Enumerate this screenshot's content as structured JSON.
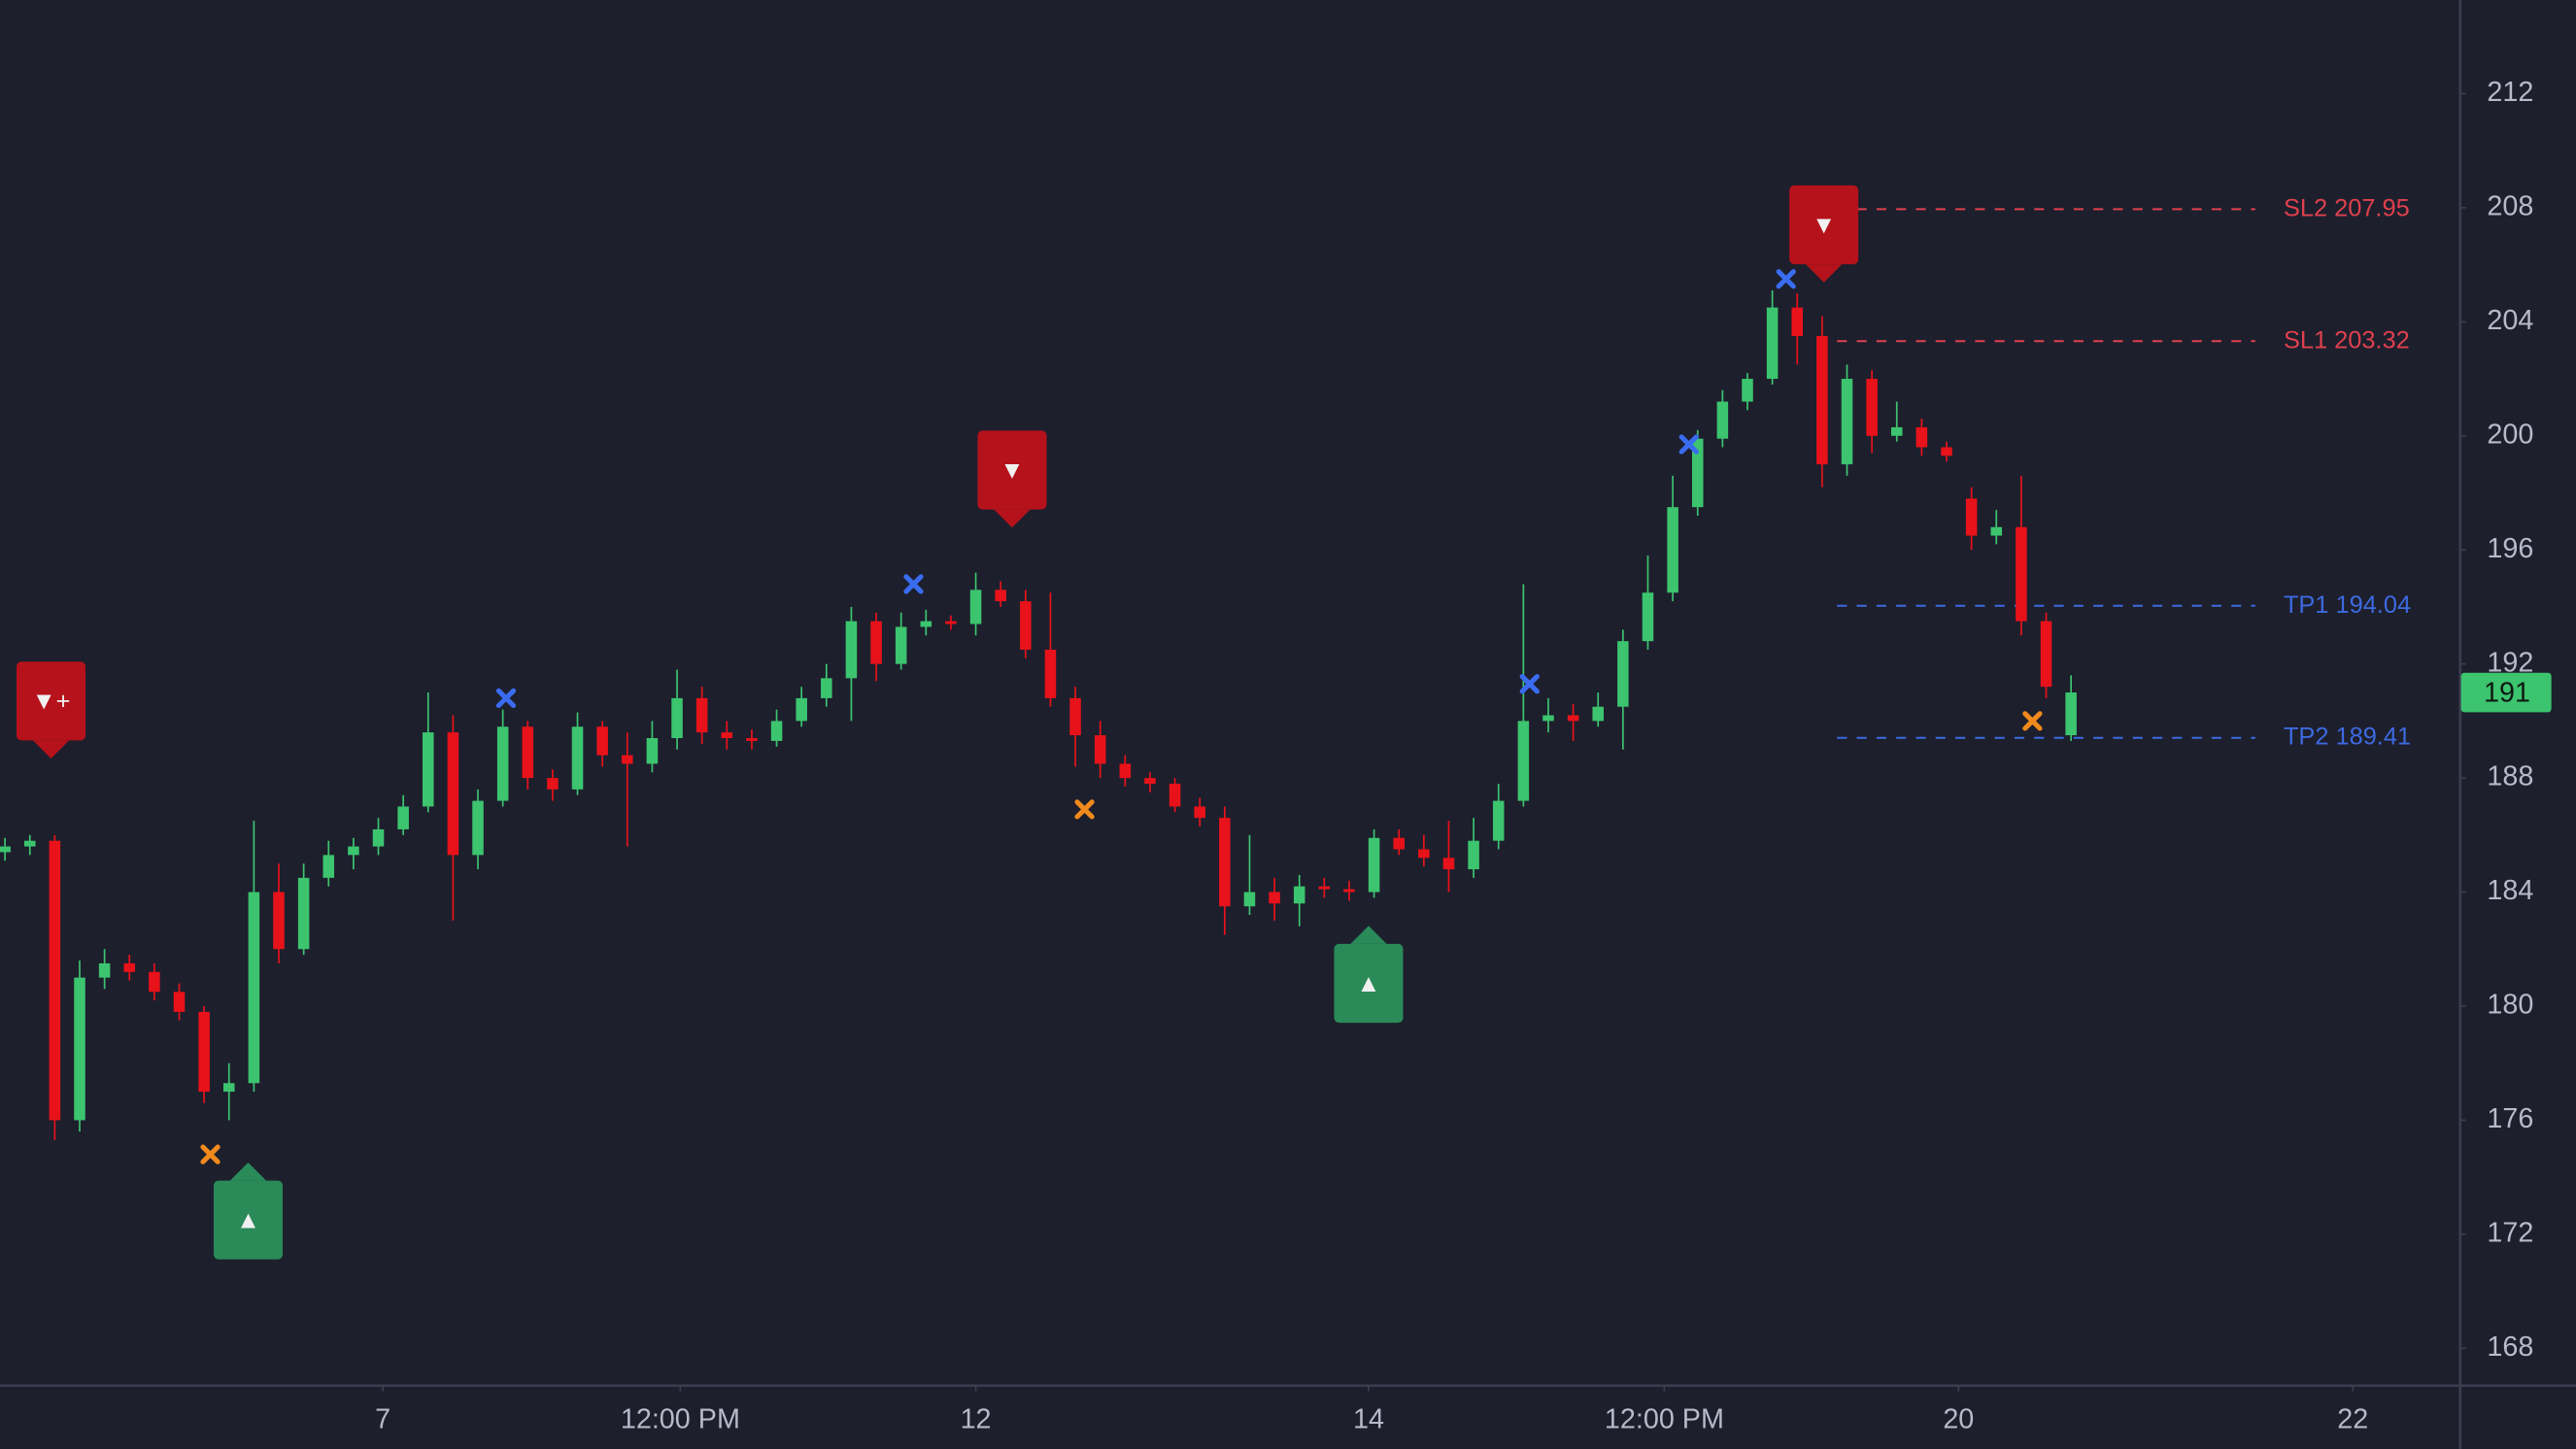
{
  "chart_data": {
    "type": "candlestick",
    "up_color": "#3cc46f",
    "down_color": "#e8121a",
    "xlim": [
      -0.2,
      98.6
    ],
    "ylim": [
      166.72,
      215.28
    ],
    "yticks": [
      168,
      172,
      176,
      180,
      184,
      188,
      192,
      196,
      200,
      204,
      208,
      212
    ],
    "xticks": [
      {
        "value": 15.18,
        "label": "7"
      },
      {
        "value": 27.13,
        "label": "12:00 PM"
      },
      {
        "value": 39.0,
        "label": "12"
      },
      {
        "value": 54.78,
        "label": "14"
      },
      {
        "value": 66.66,
        "label": "12:00 PM"
      },
      {
        "value": 78.48,
        "label": "20"
      },
      {
        "value": 94.32,
        "label": "22"
      }
    ],
    "x": [
      0,
      1,
      2,
      3,
      4,
      5,
      6,
      7,
      8,
      9,
      10,
      11,
      12,
      13,
      14,
      15,
      16,
      17,
      18,
      19,
      20,
      21,
      22,
      23,
      24,
      25,
      26,
      27,
      28,
      29,
      30,
      31,
      32,
      33,
      34,
      35,
      36,
      37,
      38,
      39,
      40,
      41,
      42,
      43,
      44,
      45,
      46,
      47,
      48,
      49,
      50,
      51,
      52,
      53,
      54,
      55,
      56,
      57,
      58,
      59,
      60,
      61,
      62,
      63,
      64,
      65,
      66,
      67,
      68,
      69,
      70,
      71,
      72,
      73,
      74,
      75,
      76,
      77,
      78,
      79,
      80,
      81,
      82,
      83
    ],
    "candles": [
      [
        185.4,
        185.9,
        185.1,
        185.6
      ],
      [
        185.6,
        186.0,
        185.3,
        185.8
      ],
      [
        185.8,
        186.0,
        175.3,
        176.0
      ],
      [
        176.0,
        181.6,
        175.6,
        181.0
      ],
      [
        181.0,
        182.0,
        180.6,
        181.5
      ],
      [
        181.5,
        181.8,
        180.9,
        181.2
      ],
      [
        181.2,
        181.5,
        180.2,
        180.5
      ],
      [
        180.5,
        180.8,
        179.5,
        179.8
      ],
      [
        179.8,
        180.0,
        176.6,
        177.0
      ],
      [
        177.0,
        178.0,
        176.0,
        177.3
      ],
      [
        177.3,
        186.5,
        177.0,
        184.0
      ],
      [
        184.0,
        185.0,
        181.5,
        182.0
      ],
      [
        182.0,
        185.0,
        181.8,
        184.5
      ],
      [
        184.5,
        185.8,
        184.2,
        185.3
      ],
      [
        185.3,
        185.9,
        184.8,
        185.6
      ],
      [
        185.6,
        186.6,
        185.3,
        186.2
      ],
      [
        186.2,
        187.4,
        186.0,
        187.0
      ],
      [
        187.0,
        191.0,
        186.8,
        189.6
      ],
      [
        189.6,
        190.2,
        183.0,
        185.3
      ],
      [
        185.3,
        187.6,
        184.8,
        187.2
      ],
      [
        187.2,
        190.4,
        187.0,
        189.8
      ],
      [
        189.8,
        190.0,
        187.6,
        188.0
      ],
      [
        188.0,
        188.3,
        187.2,
        187.6
      ],
      [
        187.6,
        190.3,
        187.4,
        189.8
      ],
      [
        189.8,
        190.0,
        188.4,
        188.8
      ],
      [
        188.8,
        189.6,
        185.6,
        188.5
      ],
      [
        188.5,
        190.0,
        188.2,
        189.4
      ],
      [
        189.4,
        191.8,
        189.0,
        190.8
      ],
      [
        190.8,
        191.2,
        189.2,
        189.6
      ],
      [
        189.6,
        190.0,
        189.0,
        189.4
      ],
      [
        189.4,
        189.7,
        189.0,
        189.3
      ],
      [
        189.3,
        190.4,
        189.1,
        190.0
      ],
      [
        190.0,
        191.2,
        189.8,
        190.8
      ],
      [
        190.8,
        192.0,
        190.5,
        191.5
      ],
      [
        191.5,
        194.0,
        190.0,
        193.5
      ],
      [
        193.5,
        193.8,
        191.4,
        192.0
      ],
      [
        192.0,
        193.8,
        191.8,
        193.3
      ],
      [
        193.3,
        193.9,
        193.0,
        193.5
      ],
      [
        193.5,
        193.7,
        193.2,
        193.4
      ],
      [
        193.4,
        195.2,
        193.0,
        194.6
      ],
      [
        194.6,
        194.9,
        194.0,
        194.2
      ],
      [
        194.2,
        194.6,
        192.2,
        192.5
      ],
      [
        192.5,
        194.5,
        190.5,
        190.8
      ],
      [
        190.8,
        191.2,
        188.4,
        189.5
      ],
      [
        189.5,
        190.0,
        188.0,
        188.5
      ],
      [
        188.5,
        188.8,
        187.7,
        188.0
      ],
      [
        188.0,
        188.2,
        187.5,
        187.8
      ],
      [
        187.8,
        188.0,
        186.8,
        187.0
      ],
      [
        187.0,
        187.3,
        186.3,
        186.6
      ],
      [
        186.6,
        187.0,
        182.5,
        183.5
      ],
      [
        183.5,
        186.0,
        183.2,
        184.0
      ],
      [
        184.0,
        184.5,
        183.0,
        183.6
      ],
      [
        183.6,
        184.6,
        182.8,
        184.2
      ],
      [
        184.2,
        184.5,
        183.8,
        184.1
      ],
      [
        184.1,
        184.4,
        183.7,
        184.0
      ],
      [
        184.0,
        186.2,
        183.8,
        185.9
      ],
      [
        185.9,
        186.2,
        185.3,
        185.5
      ],
      [
        185.5,
        186.0,
        184.9,
        185.2
      ],
      [
        185.2,
        186.5,
        184.0,
        184.8
      ],
      [
        184.8,
        186.6,
        184.5,
        185.8
      ],
      [
        185.8,
        187.8,
        185.5,
        187.2
      ],
      [
        187.2,
        194.8,
        187.0,
        190.0
      ],
      [
        190.0,
        190.8,
        189.6,
        190.2
      ],
      [
        190.2,
        190.6,
        189.3,
        190.0
      ],
      [
        190.0,
        191.0,
        189.8,
        190.5
      ],
      [
        190.5,
        193.2,
        189.0,
        192.8
      ],
      [
        192.8,
        195.8,
        192.5,
        194.5
      ],
      [
        194.5,
        198.6,
        194.2,
        197.5
      ],
      [
        197.5,
        200.2,
        197.2,
        199.9
      ],
      [
        199.9,
        201.6,
        199.6,
        201.2
      ],
      [
        201.2,
        202.2,
        200.9,
        202.0
      ],
      [
        202.0,
        205.1,
        201.8,
        204.5
      ],
      [
        204.5,
        205.0,
        202.5,
        203.5
      ],
      [
        203.5,
        204.2,
        198.2,
        199.0
      ],
      [
        199.0,
        202.5,
        198.6,
        202.0
      ],
      [
        202.0,
        202.3,
        199.4,
        200.0
      ],
      [
        200.0,
        201.2,
        199.8,
        200.3
      ],
      [
        200.3,
        200.6,
        199.3,
        199.6
      ],
      [
        199.6,
        199.8,
        199.1,
        199.3
      ],
      [
        197.8,
        198.2,
        196.0,
        196.5
      ],
      [
        196.5,
        197.4,
        196.2,
        196.8
      ],
      [
        196.8,
        198.6,
        193.0,
        193.5
      ],
      [
        193.5,
        193.8,
        190.8,
        191.2
      ],
      [
        189.5,
        191.6,
        189.3,
        191.0
      ]
    ],
    "last_price": 191,
    "signals": [
      {
        "x": 1.85,
        "y": 190.7,
        "side": "sell",
        "label": "▼+"
      },
      {
        "x": 9.77,
        "y": 172.5,
        "side": "buy",
        "label": "▲"
      },
      {
        "x": 40.46,
        "y": 198.8,
        "side": "sell",
        "label": "▼"
      },
      {
        "x": 54.78,
        "y": 180.8,
        "side": "buy",
        "label": "▲"
      },
      {
        "x": 73.07,
        "y": 207.4,
        "side": "sell",
        "label": "▼"
      }
    ],
    "crosses": [
      {
        "x": 20.13,
        "y": 190.8,
        "color": "#3a6cf0"
      },
      {
        "x": 36.5,
        "y": 194.8,
        "color": "#3a6cf0"
      },
      {
        "x": 61.25,
        "y": 191.3,
        "color": "#3a6cf0"
      },
      {
        "x": 67.65,
        "y": 199.7,
        "color": "#3a6cf0"
      },
      {
        "x": 71.55,
        "y": 205.5,
        "color": "#3a6cf0"
      },
      {
        "x": 8.25,
        "y": 174.8,
        "color": "#f08a1c"
      },
      {
        "x": 43.37,
        "y": 186.9,
        "color": "#f08a1c"
      },
      {
        "x": 81.45,
        "y": 190.0,
        "color": "#f08a1c"
      }
    ],
    "levels": [
      {
        "label": "SL2",
        "value": 207.95,
        "color": "#e0404e",
        "from": 73.6,
        "to": 90.4
      },
      {
        "label": "SL1",
        "value": 203.32,
        "color": "#e0404e",
        "from": 73.6,
        "to": 90.4
      },
      {
        "label": "TP1",
        "value": 194.04,
        "color": "#3d6ae0",
        "from": 73.6,
        "to": 90.4
      },
      {
        "label": "TP2",
        "value": 189.41,
        "color": "#3d6ae0",
        "from": 73.6,
        "to": 90.4
      }
    ]
  }
}
